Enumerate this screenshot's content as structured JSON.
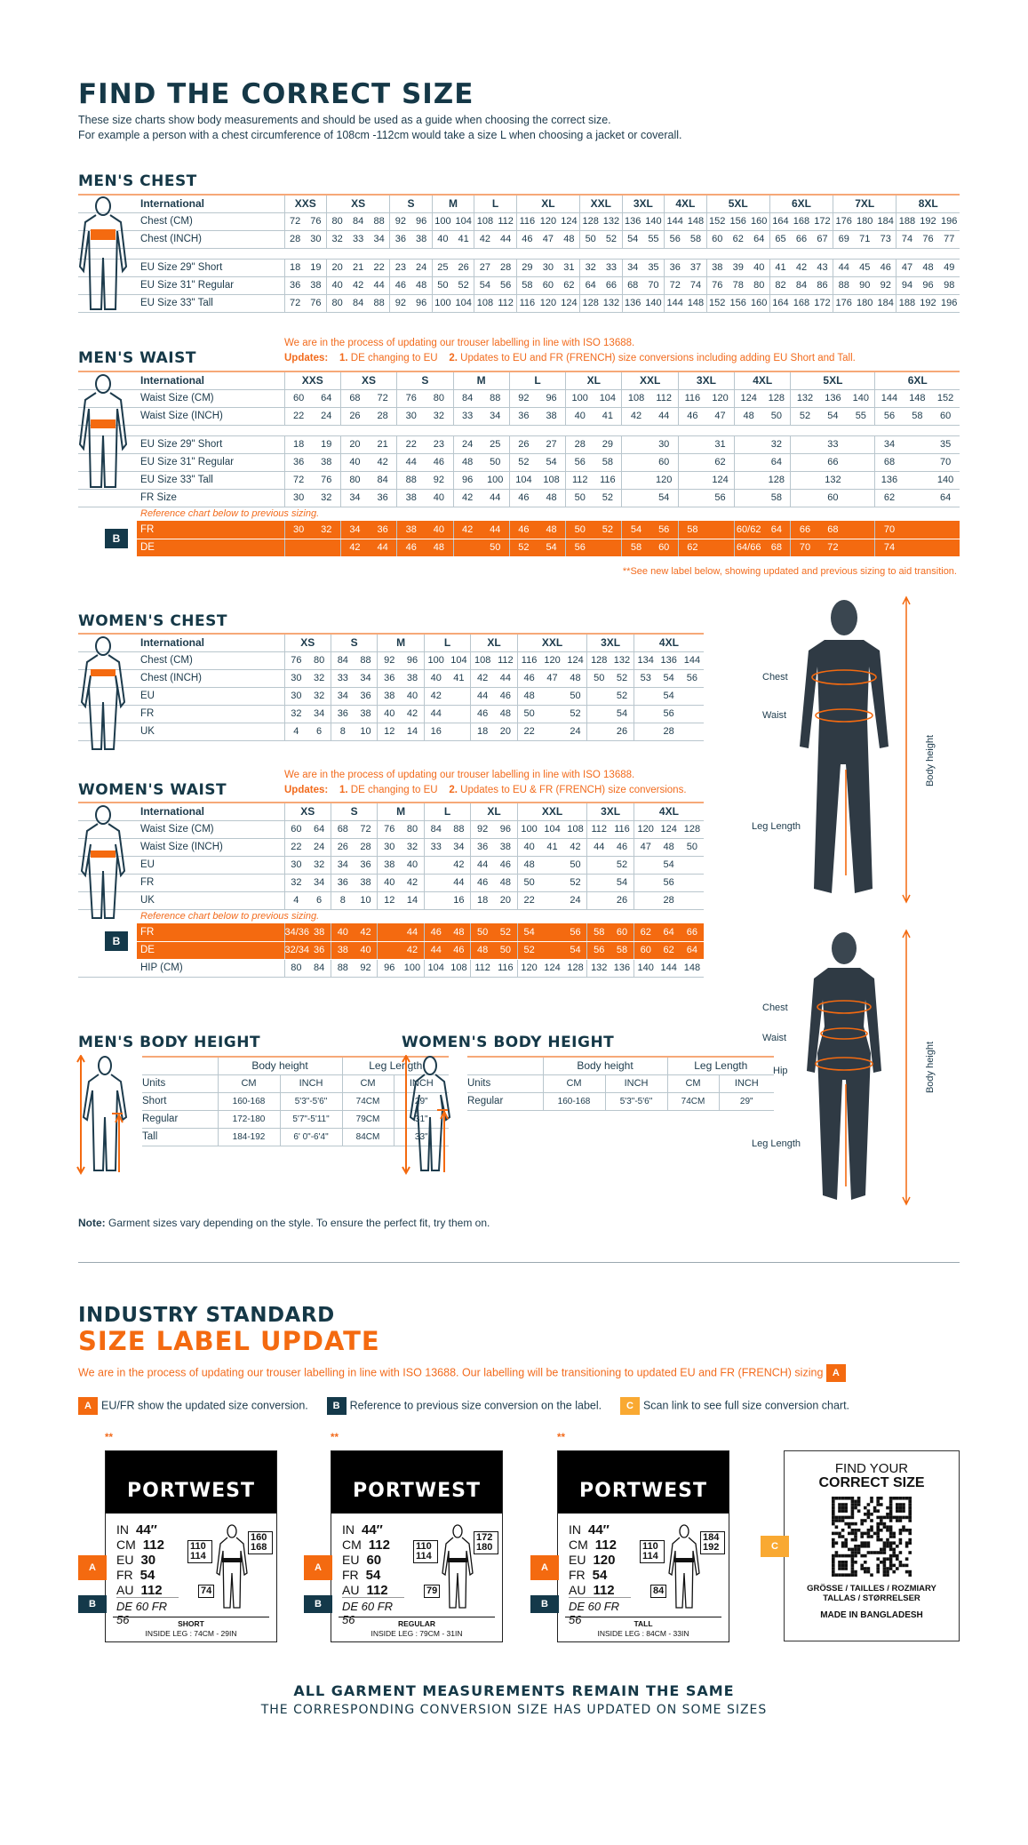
{
  "header": {
    "title": "FIND THE CORRECT SIZE",
    "intro": [
      "These size charts show body measurements and should be used as a guide when choosing the correct size.",
      "For example a person with a chest circumference of 108cm -112cm would take a size L when choosing a jacket or coverall."
    ]
  },
  "colors": {
    "navy": "#153847",
    "orange": "#f46a10",
    "label_b": "#14394a",
    "label_c": "#f9a932"
  },
  "mens_chest": {
    "title": "MEN'S CHEST",
    "header": {
      "label": "International",
      "groups": [
        [
          "XXS",
          2
        ],
        [
          "XS",
          3
        ],
        [
          "S",
          2
        ],
        [
          "M",
          2
        ],
        [
          "L",
          2
        ],
        [
          "XL",
          3
        ],
        [
          "XXL",
          2
        ],
        [
          "3XL",
          2
        ],
        [
          "4XL",
          2
        ],
        [
          "5XL",
          3
        ],
        [
          "6XL",
          3
        ],
        [
          "7XL",
          3
        ],
        [
          "8XL",
          3
        ]
      ]
    },
    "rows": [
      {
        "label": "Chest (CM)",
        "cells": [
          "72",
          "76",
          "80",
          "84",
          "88",
          "92",
          "96",
          "100",
          "104",
          "108",
          "112",
          "116",
          "120",
          "124",
          "128",
          "132",
          "136",
          "140",
          "144",
          "148",
          "152",
          "156",
          "160",
          "164",
          "168",
          "172",
          "176",
          "180",
          "184",
          "188",
          "192",
          "196"
        ]
      },
      {
        "label": "Chest (INCH)",
        "cells": [
          "28",
          "30",
          "32",
          "33",
          "34",
          "36",
          "38",
          "40",
          "41",
          "42",
          "44",
          "46",
          "47",
          "48",
          "50",
          "52",
          "54",
          "55",
          "56",
          "58",
          "60",
          "62",
          "64",
          "65",
          "66",
          "67",
          "69",
          "71",
          "73",
          "74",
          "76",
          "77"
        ]
      },
      {
        "gap": true
      },
      {
        "label": "EU Size 29\" Short",
        "cells": [
          "18",
          "19",
          "20",
          "21",
          "22",
          "23",
          "24",
          "25",
          "26",
          "27",
          "28",
          "29",
          "30",
          "31",
          "32",
          "33",
          "34",
          "35",
          "36",
          "37",
          "38",
          "39",
          "40",
          "41",
          "42",
          "43",
          "44",
          "45",
          "46",
          "47",
          "48",
          "49"
        ]
      },
      {
        "label": "EU Size 31\" Regular",
        "cells": [
          "36",
          "38",
          "40",
          "42",
          "44",
          "46",
          "48",
          "50",
          "52",
          "54",
          "56",
          "58",
          "60",
          "62",
          "64",
          "66",
          "68",
          "70",
          "72",
          "74",
          "76",
          "78",
          "80",
          "82",
          "84",
          "86",
          "88",
          "90",
          "92",
          "94",
          "96",
          "98"
        ]
      },
      {
        "label": "EU Size 33\" Tall",
        "cells": [
          "72",
          "76",
          "80",
          "84",
          "88",
          "92",
          "96",
          "100",
          "104",
          "108",
          "112",
          "116",
          "120",
          "124",
          "128",
          "132",
          "136",
          "140",
          "144",
          "148",
          "152",
          "156",
          "160",
          "164",
          "168",
          "172",
          "176",
          "180",
          "184",
          "188",
          "192",
          "196"
        ]
      }
    ]
  },
  "mens_waist": {
    "title": "MEN'S WAIST",
    "notice": "We are in the process of updating our trouser labelling in line with ISO 13688.",
    "updates_label": "Updates:",
    "update1_num": "1.",
    "update1": "DE changing to EU",
    "update2_num": "2.",
    "update2": "Updates to EU and FR (FRENCH) size conversions including adding EU Short and Tall.",
    "header": {
      "label": "International",
      "groups": [
        [
          "XXS",
          2
        ],
        [
          "XS",
          2
        ],
        [
          "S",
          2
        ],
        [
          "M",
          2
        ],
        [
          "L",
          2
        ],
        [
          "XL",
          2
        ],
        [
          "XXL",
          2
        ],
        [
          "3XL",
          2
        ],
        [
          "4XL",
          2
        ],
        [
          "5XL",
          3
        ],
        [
          "6XL",
          3
        ]
      ]
    },
    "rows": [
      {
        "label": "Waist Size (CM)",
        "cells": [
          "60",
          "64",
          "68",
          "72",
          "76",
          "80",
          "84",
          "88",
          "92",
          "96",
          "100",
          "104",
          "108",
          "112",
          "116",
          "120",
          "124",
          "128",
          "132",
          "136",
          "140",
          "144",
          "148",
          "152"
        ]
      },
      {
        "label": "Waist Size (INCH)",
        "cells": [
          "22",
          "24",
          "26",
          "28",
          "30",
          "32",
          "33",
          "34",
          "36",
          "38",
          "40",
          "41",
          "42",
          "44",
          "46",
          "47",
          "48",
          "50",
          "52",
          "54",
          "55",
          "56",
          "58",
          "60"
        ]
      },
      {
        "gap": true
      },
      {
        "label": "EU Size 29\" Short",
        "cells": [
          "18",
          "19",
          "20",
          "21",
          "22",
          "23",
          "24",
          "25",
          "26",
          "27",
          "28",
          "29",
          "",
          "30",
          "",
          "31",
          "",
          "32",
          "",
          "33",
          "",
          "34",
          "",
          "35"
        ]
      },
      {
        "label": "EU Size 31\" Regular",
        "cells": [
          "36",
          "38",
          "40",
          "42",
          "44",
          "46",
          "48",
          "50",
          "52",
          "54",
          "56",
          "58",
          "",
          "60",
          "",
          "62",
          "",
          "64",
          "",
          "66",
          "",
          "68",
          "",
          "70"
        ]
      },
      {
        "label": "EU Size 33\" Tall",
        "cells": [
          "72",
          "76",
          "80",
          "84",
          "88",
          "92",
          "96",
          "100",
          "104",
          "108",
          "112",
          "116",
          "",
          "120",
          "",
          "124",
          "",
          "128",
          "",
          "132",
          "",
          "136",
          "",
          "140"
        ]
      },
      {
        "label": "FR Size",
        "cells": [
          "30",
          "32",
          "34",
          "36",
          "38",
          "40",
          "42",
          "44",
          "46",
          "48",
          "50",
          "52",
          "",
          "54",
          "",
          "56",
          "",
          "58",
          "",
          "60",
          "",
          "62",
          "",
          "64"
        ]
      }
    ],
    "reference_note": "Reference chart below to previous sizing.",
    "band_badge": "B",
    "band": [
      {
        "label": "FR",
        "cells": [
          "30",
          "32",
          "34",
          "36",
          "38",
          "40",
          "42",
          "44",
          "46",
          "48",
          "50",
          "52",
          "54",
          "56",
          "58",
          "",
          "60/62",
          "64",
          "66",
          "68",
          "",
          "70",
          "",
          ""
        ]
      },
      {
        "label": "DE",
        "cells": [
          "",
          "",
          "42",
          "44",
          "46",
          "48",
          "",
          "50",
          "52",
          "54",
          "56",
          "",
          "58",
          "60",
          "62",
          "",
          "64/66",
          "68",
          "70",
          "72",
          "",
          "74",
          "",
          ""
        ]
      }
    ],
    "footnote": "**See new label below, showing updated and previous sizing to aid transition."
  },
  "womens_chest": {
    "title": "WOMEN'S CHEST",
    "header": {
      "label": "International",
      "groups": [
        [
          "XS",
          2
        ],
        [
          "S",
          2
        ],
        [
          "M",
          2
        ],
        [
          "L",
          2
        ],
        [
          "XL",
          2
        ],
        [
          "XXL",
          3
        ],
        [
          "3XL",
          2
        ],
        [
          "4XL",
          3
        ]
      ]
    },
    "rows": [
      {
        "label": "Chest (CM)",
        "cells": [
          "76",
          "80",
          "84",
          "88",
          "92",
          "96",
          "100",
          "104",
          "108",
          "112",
          "116",
          "120",
          "124",
          "128",
          "132",
          "134",
          "136",
          "144"
        ]
      },
      {
        "label": "Chest (INCH)",
        "cells": [
          "30",
          "32",
          "33",
          "34",
          "36",
          "38",
          "40",
          "41",
          "42",
          "44",
          "46",
          "47",
          "48",
          "50",
          "52",
          "53",
          "54",
          "56"
        ]
      },
      {
        "label": "EU",
        "cells": [
          "30",
          "32",
          "34",
          "36",
          "38",
          "40",
          "42",
          "",
          "44",
          "46",
          "48",
          "",
          "50",
          "",
          "52",
          "",
          "54",
          ""
        ]
      },
      {
        "label": "FR",
        "cells": [
          "32",
          "34",
          "36",
          "38",
          "40",
          "42",
          "44",
          "",
          "46",
          "48",
          "50",
          "",
          "52",
          "",
          "54",
          "",
          "56",
          ""
        ]
      },
      {
        "label": "UK",
        "cells": [
          "4",
          "6",
          "8",
          "10",
          "12",
          "14",
          "16",
          "",
          "18",
          "20",
          "22",
          "",
          "24",
          "",
          "26",
          "",
          "28",
          ""
        ]
      }
    ]
  },
  "womens_waist": {
    "title": "WOMEN'S WAIST",
    "notice": "We are in the process of updating our trouser labelling in line with ISO 13688.",
    "updates_label": "Updates:",
    "update1_num": "1.",
    "update1": "DE changing to EU",
    "update2_num": "2.",
    "update2": "Updates to EU & FR (FRENCH) size conversions.",
    "header": {
      "label": "International",
      "groups": [
        [
          "XS",
          2
        ],
        [
          "S",
          2
        ],
        [
          "M",
          2
        ],
        [
          "L",
          2
        ],
        [
          "XL",
          2
        ],
        [
          "XXL",
          3
        ],
        [
          "3XL",
          2
        ],
        [
          "4XL",
          3
        ]
      ]
    },
    "rows": [
      {
        "label": "Waist Size (CM)",
        "cells": [
          "60",
          "64",
          "68",
          "72",
          "76",
          "80",
          "84",
          "88",
          "92",
          "96",
          "100",
          "104",
          "108",
          "112",
          "116",
          "120",
          "124",
          "128"
        ]
      },
      {
        "label": "Waist Size (INCH)",
        "cells": [
          "22",
          "24",
          "26",
          "28",
          "30",
          "32",
          "33",
          "34",
          "36",
          "38",
          "40",
          "41",
          "42",
          "44",
          "46",
          "47",
          "48",
          "50"
        ]
      },
      {
        "label": "EU",
        "cells": [
          "30",
          "32",
          "34",
          "36",
          "38",
          "40",
          "",
          "42",
          "44",
          "46",
          "48",
          "",
          "50",
          "",
          "52",
          "",
          "54",
          ""
        ]
      },
      {
        "label": "FR",
        "cells": [
          "32",
          "34",
          "36",
          "38",
          "40",
          "42",
          "",
          "44",
          "46",
          "48",
          "50",
          "",
          "52",
          "",
          "54",
          "",
          "56",
          ""
        ]
      },
      {
        "label": "UK",
        "cells": [
          "4",
          "6",
          "8",
          "10",
          "12",
          "14",
          "",
          "16",
          "18",
          "20",
          "22",
          "",
          "24",
          "",
          "26",
          "",
          "28",
          ""
        ]
      }
    ],
    "reference_note": "Reference chart below to previous sizing.",
    "band_badge": "B",
    "band": [
      {
        "label": "FR",
        "cells": [
          "34/36",
          "38",
          "40",
          "42",
          "",
          "44",
          "46",
          "48",
          "50",
          "52",
          "54",
          "",
          "56",
          "58",
          "60",
          "62",
          "64",
          "66"
        ]
      },
      {
        "label": "DE",
        "cells": [
          "32/34",
          "36",
          "38",
          "40",
          "",
          "42",
          "44",
          "46",
          "48",
          "50",
          "52",
          "",
          "54",
          "56",
          "58",
          "60",
          "62",
          "64"
        ]
      }
    ],
    "after": [
      {
        "label": "HIP (CM)",
        "cells": [
          "80",
          "84",
          "88",
          "92",
          "96",
          "100",
          "104",
          "108",
          "112",
          "116",
          "120",
          "124",
          "128",
          "132",
          "136",
          "140",
          "144",
          "148"
        ]
      }
    ]
  },
  "mens_height": {
    "title": "MEN'S BODY HEIGHT",
    "group1": "Body height",
    "group2": "Leg Length",
    "units": [
      "Units",
      "CM",
      "INCH",
      "CM",
      "INCH"
    ],
    "rows": [
      [
        "Short",
        "160-168",
        "5'3\"-5'6\"",
        "74CM",
        "29\""
      ],
      [
        "Regular",
        "172-180",
        "5'7\"-5'11\"",
        "79CM",
        "31\""
      ],
      [
        "Tall",
        "184-192",
        "6' 0\"-6'4\"",
        "84CM",
        "33\""
      ]
    ]
  },
  "womens_height": {
    "title": "WOMEN'S BODY HEIGHT",
    "group1": "Body height",
    "group2": "Leg Length",
    "units": [
      "Units",
      "CM",
      "INCH",
      "CM",
      "INCH"
    ],
    "rows": [
      [
        "Regular",
        "160-168",
        "5'3\"-5'6\"",
        "74CM",
        "29\""
      ]
    ]
  },
  "figures": {
    "male": {
      "chest": "Chest",
      "waist": "Waist",
      "leg": "Leg Length",
      "height": "Body height"
    },
    "female": {
      "chest": "Chest",
      "waist": "Waist",
      "hip": "Hip",
      "leg": "Leg Length",
      "height": "Body height"
    }
  },
  "note": {
    "bold": "Note:",
    "text": " Garment sizes vary depending on the style. To ensure the perfect fit, try them on."
  },
  "label_update": {
    "title1": "INDUSTRY STANDARD",
    "title2": "SIZE LABEL UPDATE",
    "text": "We are in the process of updating our trouser labelling in line with ISO 13688. Our labelling will be transitioning to updated EU and FR (FRENCH) sizing",
    "badge_a": "A",
    "badge_b": "B",
    "badge_c": "C",
    "legend_a": "EU/FR show the updated size conversion.",
    "legend_b": "Reference to previous size conversion on the label.",
    "legend_c": "Scan link to see full size conversion chart.",
    "labels": [
      {
        "mark": "**",
        "brand": "PORTWEST",
        "in": "44″",
        "cm": "112",
        "eu": "30",
        "fr": "54",
        "au": "112",
        "waist": "110\n114",
        "height": "160\n168",
        "leg": "74",
        "de": "DE 60 FR 56",
        "fit": "SHORT",
        "inside": "INSIDE LEG : 74CM - 29IN"
      },
      {
        "mark": "**",
        "brand": "PORTWEST",
        "in": "44″",
        "cm": "112",
        "eu": "60",
        "fr": "54",
        "au": "112",
        "waist": "110\n114",
        "height": "172\n180",
        "leg": "79",
        "de": "DE 60 FR 56",
        "fit": "REGULAR",
        "inside": "INSIDE LEG : 79CM - 31IN"
      },
      {
        "mark": "**",
        "brand": "PORTWEST",
        "in": "44″",
        "cm": "112",
        "eu": "120",
        "fr": "54",
        "au": "112",
        "waist": "110\n114",
        "height": "184\n192",
        "leg": "84",
        "de": "DE 60 FR 56",
        "fit": "TALL",
        "inside": "INSIDE LEG : 84CM - 33IN"
      }
    ],
    "value_keys": [
      "IN",
      "CM",
      "EU",
      "FR",
      "AU"
    ],
    "qr": {
      "line1": "FIND YOUR",
      "line2": "CORRECT SIZE",
      "langs1": "GRÖSSE / TAILLES / ROZMIARY",
      "langs2": "TALLAS / STØRRELSER",
      "made": "MADE IN BANGLADESH"
    }
  },
  "footer": {
    "line1": "ALL GARMENT MEASUREMENTS REMAIN THE SAME",
    "line2": "THE CORRESPONDING CONVERSION SIZE HAS UPDATED ON SOME SIZES"
  }
}
